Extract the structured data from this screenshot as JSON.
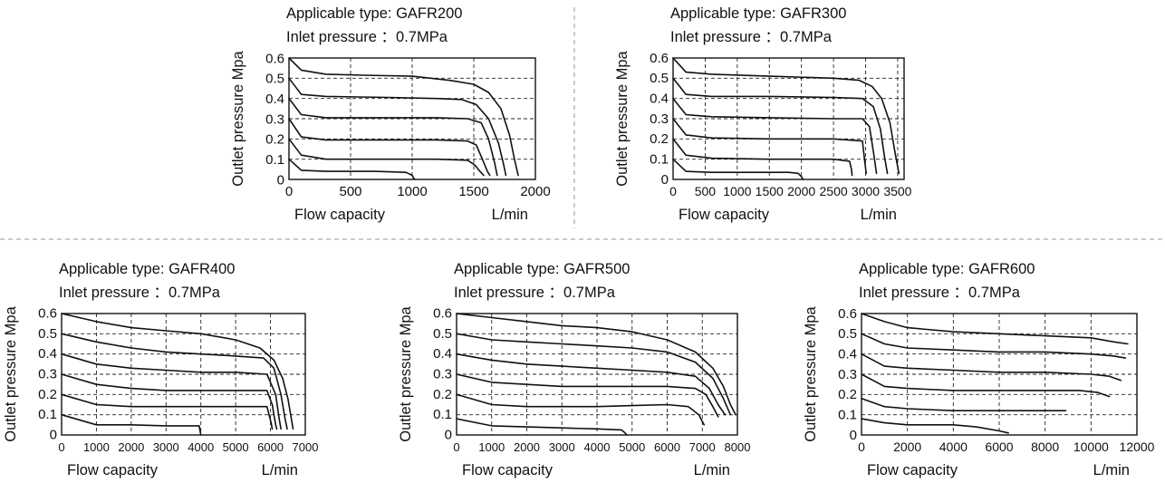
{
  "colors": {
    "line": "#111111",
    "grid": "#222222",
    "divider": "#9a9a9a",
    "background": "#ffffff"
  },
  "chart_data": [
    {
      "type": "line",
      "title": "Applicable type: GAFR200",
      "subtitle": "Inlet pressure ：0.7MPa",
      "xlabel": "Flow capacity",
      "xunit": "L/min",
      "ylabel": "Outlet pressure  Mpa",
      "xlim": [
        0,
        2000
      ],
      "ylim": [
        0,
        0.6
      ],
      "xticks": [
        0,
        500,
        1000,
        1500,
        2000
      ],
      "xtick_labels": [
        "0",
        "500",
        "1000",
        "1500",
        "2000"
      ],
      "yticks": [
        0,
        0.1,
        0.2,
        0.3,
        0.4,
        0.5,
        0.6
      ],
      "ytick_labels": [
        "0",
        "0.1",
        "0.2",
        "0.3",
        "0.4",
        "0.5",
        "0.6"
      ],
      "grid": true,
      "series": [
        {
          "x": [
            0,
            100,
            300,
            600,
            1000,
            1300,
            1500,
            1620,
            1720,
            1790,
            1830,
            1860
          ],
          "y": [
            0.6,
            0.54,
            0.52,
            0.515,
            0.51,
            0.49,
            0.47,
            0.43,
            0.35,
            0.22,
            0.1,
            0.02
          ]
        },
        {
          "x": [
            0,
            100,
            300,
            800,
            1200,
            1400,
            1520,
            1620,
            1700,
            1740,
            1760
          ],
          "y": [
            0.5,
            0.42,
            0.41,
            0.405,
            0.4,
            0.395,
            0.37,
            0.3,
            0.18,
            0.08,
            0.02
          ]
        },
        {
          "x": [
            0,
            100,
            300,
            800,
            1200,
            1450,
            1560,
            1620,
            1670,
            1690
          ],
          "y": [
            0.4,
            0.32,
            0.305,
            0.305,
            0.305,
            0.3,
            0.28,
            0.2,
            0.08,
            0.02
          ]
        },
        {
          "x": [
            0,
            100,
            300,
            800,
            1200,
            1450,
            1520,
            1570,
            1610,
            1630
          ],
          "y": [
            0.3,
            0.21,
            0.195,
            0.195,
            0.195,
            0.19,
            0.17,
            0.1,
            0.04,
            0.02
          ]
        },
        {
          "x": [
            0,
            100,
            300,
            800,
            1200,
            1450,
            1510,
            1550,
            1580
          ],
          "y": [
            0.2,
            0.12,
            0.1,
            0.1,
            0.1,
            0.095,
            0.07,
            0.04,
            0.02
          ]
        },
        {
          "x": [
            0,
            100,
            300,
            700,
            950,
            1000,
            1010,
            1020
          ],
          "y": [
            0.1,
            0.045,
            0.04,
            0.04,
            0.035,
            0.02,
            0.008,
            0.0
          ]
        }
      ]
    },
    {
      "type": "line",
      "title": "Applicable type: GAFR300",
      "subtitle": "Inlet pressure ：0.7MPa",
      "xlabel": "Flow capacity",
      "xunit": "L/min",
      "ylabel": "Outlet pressure  Mpa",
      "xlim": [
        0,
        3600
      ],
      "ylim": [
        0,
        0.6
      ],
      "xticks": [
        0,
        500,
        1000,
        1500,
        2000,
        2500,
        3000,
        3500
      ],
      "xtick_labels": [
        "0",
        "500",
        "1000",
        "1500",
        "2000",
        "2500",
        "3000",
        "3500"
      ],
      "yticks": [
        0,
        0.1,
        0.2,
        0.3,
        0.4,
        0.5,
        0.6
      ],
      "ytick_labels": [
        "0",
        "0.1",
        "0.2",
        "0.3",
        "0.4",
        "0.5",
        "0.6"
      ],
      "grid": true,
      "series": [
        {
          "x": [
            0,
            200,
            600,
            1500,
            2500,
            2900,
            3100,
            3250,
            3380,
            3460,
            3520
          ],
          "y": [
            0.6,
            0.53,
            0.52,
            0.51,
            0.5,
            0.49,
            0.46,
            0.4,
            0.28,
            0.13,
            0.03
          ]
        },
        {
          "x": [
            0,
            200,
            600,
            1500,
            2500,
            2950,
            3120,
            3230,
            3300,
            3340
          ],
          "y": [
            0.5,
            0.42,
            0.41,
            0.41,
            0.405,
            0.4,
            0.36,
            0.25,
            0.1,
            0.03
          ]
        },
        {
          "x": [
            0,
            200,
            600,
            1500,
            2500,
            2950,
            3060,
            3130,
            3170
          ],
          "y": [
            0.4,
            0.32,
            0.31,
            0.305,
            0.3,
            0.3,
            0.26,
            0.12,
            0.03
          ]
        },
        {
          "x": [
            0,
            200,
            600,
            1500,
            2500,
            2950,
            2990,
            3010
          ],
          "y": [
            0.3,
            0.22,
            0.205,
            0.2,
            0.2,
            0.19,
            0.08,
            0.03
          ]
        },
        {
          "x": [
            0,
            200,
            600,
            1500,
            2500,
            2750,
            2780,
            2790
          ],
          "y": [
            0.2,
            0.12,
            0.105,
            0.1,
            0.1,
            0.09,
            0.05,
            0.02
          ]
        },
        {
          "x": [
            0,
            200,
            600,
            1200,
            1800,
            1950,
            2010,
            2020
          ],
          "y": [
            0.1,
            0.04,
            0.035,
            0.035,
            0.035,
            0.03,
            0.01,
            0.0
          ]
        }
      ]
    },
    {
      "type": "line",
      "title": "Applicable type: GAFR400",
      "subtitle": "Inlet pressure ：0.7MPa",
      "xlabel": "Flow capacity",
      "xunit": "L/min",
      "ylabel": "Outlet pressure  Mpa",
      "xlim": [
        0,
        7000
      ],
      "ylim": [
        0,
        0.6
      ],
      "xticks": [
        0,
        1000,
        2000,
        3000,
        4000,
        5000,
        6000,
        7000
      ],
      "xtick_labels": [
        "0",
        "1000",
        "2000",
        "3000",
        "4000",
        "5000",
        "6000",
        "7000"
      ],
      "yticks": [
        0,
        0.1,
        0.2,
        0.3,
        0.4,
        0.5,
        0.6
      ],
      "ytick_labels": [
        "0",
        "0.1",
        "0.2",
        "0.3",
        "0.4",
        "0.5",
        "0.6"
      ],
      "grid": true,
      "series": [
        {
          "x": [
            0,
            1000,
            2000,
            3000,
            4000,
            5000,
            5700,
            6100,
            6350,
            6500,
            6600,
            6650
          ],
          "y": [
            0.6,
            0.56,
            0.53,
            0.515,
            0.5,
            0.47,
            0.43,
            0.37,
            0.28,
            0.18,
            0.08,
            0.03
          ]
        },
        {
          "x": [
            0,
            1000,
            2000,
            3000,
            4000,
            5000,
            5800,
            6100,
            6300,
            6420,
            6480
          ],
          "y": [
            0.5,
            0.46,
            0.43,
            0.41,
            0.4,
            0.39,
            0.38,
            0.33,
            0.2,
            0.08,
            0.03
          ]
        },
        {
          "x": [
            0,
            1000,
            2000,
            3000,
            4000,
            5000,
            5900,
            6150,
            6250,
            6300
          ],
          "y": [
            0.4,
            0.35,
            0.33,
            0.32,
            0.31,
            0.31,
            0.3,
            0.2,
            0.08,
            0.03
          ]
        },
        {
          "x": [
            0,
            1000,
            2000,
            3000,
            4000,
            5000,
            5900,
            6050,
            6150,
            6180
          ],
          "y": [
            0.3,
            0.25,
            0.23,
            0.22,
            0.22,
            0.22,
            0.22,
            0.15,
            0.05,
            0.03
          ]
        },
        {
          "x": [
            0,
            1000,
            2000,
            3000,
            4000,
            5000,
            5900,
            6020,
            6050
          ],
          "y": [
            0.2,
            0.15,
            0.14,
            0.14,
            0.14,
            0.14,
            0.14,
            0.06,
            0.03
          ]
        },
        {
          "x": [
            0,
            1000,
            2000,
            3000,
            3800,
            3950,
            4000
          ],
          "y": [
            0.1,
            0.05,
            0.05,
            0.045,
            0.045,
            0.045,
            0.0
          ]
        }
      ]
    },
    {
      "type": "line",
      "title": "Applicable type: GAFR500",
      "subtitle": "Inlet pressure ：0.7MPa",
      "xlabel": "Flow capacity",
      "xunit": "L/min",
      "ylabel": "Outlet pressure  Mpa",
      "xlim": [
        0,
        8000
      ],
      "ylim": [
        0,
        0.6
      ],
      "xticks": [
        0,
        1000,
        2000,
        3000,
        4000,
        5000,
        6000,
        7000,
        8000
      ],
      "xtick_labels": [
        "0",
        "1000",
        "2000",
        "3000",
        "4000",
        "5000",
        "6000",
        "7000",
        "8000"
      ],
      "yticks": [
        0,
        0.1,
        0.2,
        0.3,
        0.4,
        0.5,
        0.6
      ],
      "ytick_labels": [
        "0",
        "0.1",
        "0.2",
        "0.3",
        "0.4",
        "0.5",
        "0.6"
      ],
      "grid": true,
      "series": [
        {
          "x": [
            0,
            1000,
            2000,
            3000,
            4000,
            5000,
            6000,
            6800,
            7300,
            7600,
            7800,
            7950
          ],
          "y": [
            0.6,
            0.58,
            0.56,
            0.54,
            0.53,
            0.51,
            0.47,
            0.41,
            0.33,
            0.24,
            0.15,
            0.1
          ]
        },
        {
          "x": [
            0,
            1000,
            2000,
            3000,
            4000,
            5000,
            6000,
            6800,
            7300,
            7600,
            7800
          ],
          "y": [
            0.5,
            0.47,
            0.46,
            0.45,
            0.44,
            0.43,
            0.41,
            0.36,
            0.28,
            0.18,
            0.1
          ]
        },
        {
          "x": [
            0,
            1000,
            2000,
            3000,
            4000,
            5000,
            6000,
            6800,
            7200,
            7450,
            7650
          ],
          "y": [
            0.4,
            0.37,
            0.35,
            0.34,
            0.33,
            0.32,
            0.31,
            0.29,
            0.23,
            0.15,
            0.1
          ]
        },
        {
          "x": [
            0,
            1000,
            2000,
            3000,
            4000,
            5000,
            6000,
            6800,
            7100,
            7300,
            7450
          ],
          "y": [
            0.3,
            0.26,
            0.25,
            0.24,
            0.24,
            0.24,
            0.24,
            0.23,
            0.2,
            0.14,
            0.09
          ]
        },
        {
          "x": [
            0,
            1000,
            2000,
            3000,
            4000,
            5000,
            6000,
            6600,
            6900,
            7050
          ],
          "y": [
            0.2,
            0.15,
            0.14,
            0.14,
            0.14,
            0.145,
            0.15,
            0.14,
            0.1,
            0.05
          ]
        },
        {
          "x": [
            0,
            1000,
            2000,
            3000,
            4000,
            4700,
            4800,
            4850
          ],
          "y": [
            0.08,
            0.045,
            0.04,
            0.035,
            0.03,
            0.025,
            0.01,
            0.0
          ]
        }
      ]
    },
    {
      "type": "line",
      "title": "Applicable type: GAFR600",
      "subtitle": "Inlet pressure ：0.7MPa",
      "xlabel": "Flow capacity",
      "xunit": "L/min",
      "ylabel": "Outlet pressure  Mpa",
      "xlim": [
        0,
        12000
      ],
      "ylim": [
        0,
        0.6
      ],
      "xticks": [
        0,
        2000,
        4000,
        6000,
        8000,
        10000,
        12000
      ],
      "xtick_labels": [
        "0",
        "2000",
        "4000",
        "6000",
        "8000",
        "10000",
        "12000"
      ],
      "yticks": [
        0,
        0.1,
        0.2,
        0.3,
        0.4,
        0.5,
        0.6
      ],
      "ytick_labels": [
        "0",
        "0.1",
        "0.2",
        "0.3",
        "0.4",
        "0.5",
        "0.6"
      ],
      "grid": true,
      "series": [
        {
          "x": [
            0,
            1000,
            2000,
            4000,
            6000,
            8000,
            10000,
            11000,
            11600
          ],
          "y": [
            0.6,
            0.56,
            0.53,
            0.51,
            0.5,
            0.49,
            0.48,
            0.46,
            0.45
          ]
        },
        {
          "x": [
            0,
            1000,
            2000,
            4000,
            6000,
            8000,
            10000,
            11000,
            11500
          ],
          "y": [
            0.5,
            0.45,
            0.43,
            0.42,
            0.41,
            0.41,
            0.4,
            0.39,
            0.38
          ]
        },
        {
          "x": [
            0,
            1000,
            2000,
            4000,
            6000,
            8000,
            10000,
            10800,
            11300
          ],
          "y": [
            0.4,
            0.34,
            0.33,
            0.32,
            0.31,
            0.31,
            0.3,
            0.29,
            0.27
          ]
        },
        {
          "x": [
            0,
            1000,
            2000,
            4000,
            6000,
            8000,
            9500,
            10300,
            10800
          ],
          "y": [
            0.3,
            0.24,
            0.23,
            0.22,
            0.22,
            0.22,
            0.22,
            0.21,
            0.19
          ]
        },
        {
          "x": [
            0,
            1000,
            2000,
            4000,
            6000,
            8000,
            8900
          ],
          "y": [
            0.18,
            0.14,
            0.13,
            0.12,
            0.12,
            0.12,
            0.12
          ]
        },
        {
          "x": [
            0,
            1000,
            2000,
            4000,
            5000,
            6000,
            6400
          ],
          "y": [
            0.08,
            0.06,
            0.05,
            0.05,
            0.04,
            0.02,
            0.01
          ]
        }
      ]
    }
  ]
}
